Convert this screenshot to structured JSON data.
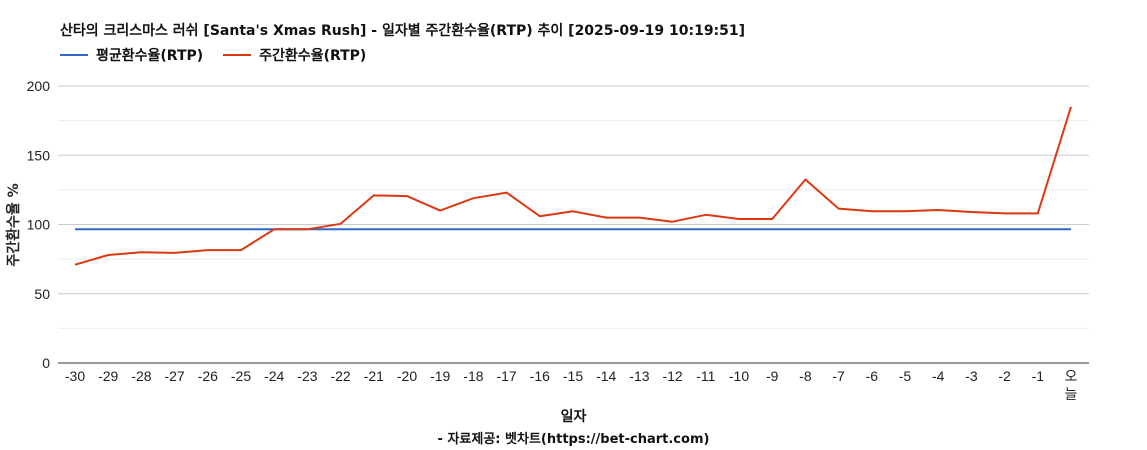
{
  "chart_data": {
    "type": "line",
    "title": "산타의 크리스마스 러쉬 [Santa's Xmas Rush] - 일자별 주간환수율(RTP) 추이 [2025-09-19 10:19:51]",
    "xlabel": "일자",
    "ylabel": "주간환수율 %",
    "source": "- 자료제공: 벳차트(https://bet-chart.com)",
    "ylim": [
      0,
      200
    ],
    "yticks": [
      "0",
      "50",
      "100",
      "150",
      "200"
    ],
    "grid": true,
    "legend_position": "top-left",
    "categories": [
      "-30",
      "-29",
      "-28",
      "-27",
      "-26",
      "-25",
      "-24",
      "-23",
      "-22",
      "-21",
      "-20",
      "-19",
      "-18",
      "-17",
      "-16",
      "-15",
      "-14",
      "-13",
      "-12",
      "-11",
      "-10",
      "-9",
      "-8",
      "-7",
      "-6",
      "-5",
      "-4",
      "-3",
      "-2",
      "-1",
      "오늘"
    ],
    "series": [
      {
        "name": "평균환수율(RTP)",
        "color": "#3366cc",
        "values": [
          96.5,
          96.5,
          96.5,
          96.5,
          96.5,
          96.5,
          96.5,
          96.5,
          96.5,
          96.5,
          96.5,
          96.5,
          96.5,
          96.5,
          96.5,
          96.5,
          96.5,
          96.5,
          96.5,
          96.5,
          96.5,
          96.5,
          96.5,
          96.5,
          96.5,
          96.5,
          96.5,
          96.5,
          96.5,
          96.5,
          96.5
        ]
      },
      {
        "name": "주간환수율(RTP)",
        "color": "#dc3912",
        "values": [
          71,
          78,
          80,
          79.5,
          81.5,
          81.5,
          96.5,
          96.5,
          100.5,
          121,
          120.5,
          110,
          119,
          123,
          106,
          109.5,
          105,
          105,
          102,
          107,
          104,
          104,
          132.5,
          111.5,
          109.5,
          109.5,
          110.5,
          109,
          108,
          108,
          185
        ]
      }
    ]
  }
}
